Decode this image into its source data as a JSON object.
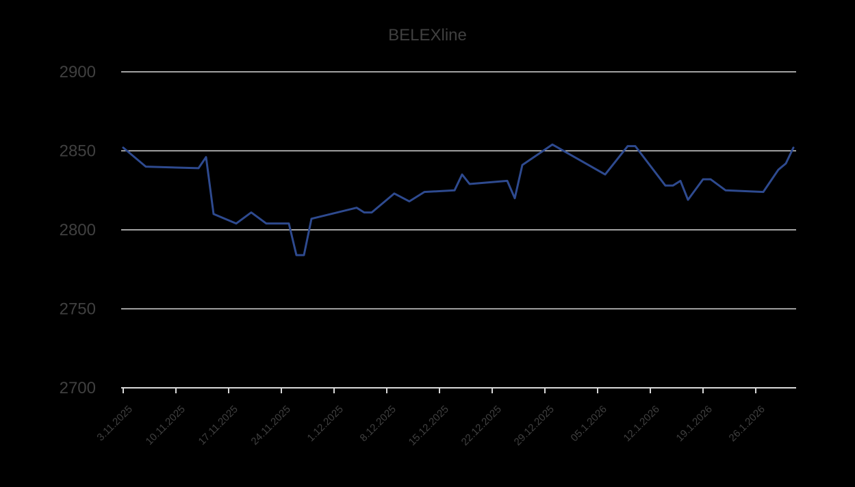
{
  "colors": {
    "background": "#000000",
    "line": "#2E4A8F",
    "grid": "#D9D9D9",
    "axis": "#D9D9D9",
    "text": "#404040"
  },
  "chart_data": {
    "type": "line",
    "title": "BELEXline",
    "xlabel": "",
    "ylabel": "",
    "ylim": [
      2700,
      2900
    ],
    "yticks": [
      2700,
      2750,
      2800,
      2850,
      2900
    ],
    "grid": true,
    "legend": "none",
    "x_tick_labels": [
      "3.11.2025",
      "10.11.2025",
      "17.11.2025",
      "24.11.2025",
      "1.12.2025",
      "8.12.2025",
      "15.12.2025",
      "22.12.2025",
      "29.12.2025",
      "05.1.2026",
      "12.1.2026",
      "19.1.2026",
      "26.1.2026"
    ],
    "x_range": [
      "2025-11-03",
      "2026-01-31"
    ],
    "series": [
      {
        "x": [
          "2025-11-03",
          "2025-11-06",
          "2025-11-13",
          "2025-11-14",
          "2025-11-15",
          "2025-11-18",
          "2025-11-20",
          "2025-11-22",
          "2025-11-25",
          "2025-11-26",
          "2025-11-27",
          "2025-11-28",
          "2025-12-04",
          "2025-12-05",
          "2025-12-06",
          "2025-12-09",
          "2025-12-11",
          "2025-12-13",
          "2025-12-17",
          "2025-12-18",
          "2025-12-19",
          "2025-12-24",
          "2025-12-25",
          "2025-12-26",
          "2025-12-30",
          "2026-01-06",
          "2026-01-09",
          "2026-01-10",
          "2026-01-14",
          "2026-01-15",
          "2026-01-16",
          "2026-01-17",
          "2026-01-19",
          "2026-01-20",
          "2026-01-22",
          "2026-01-27",
          "2026-01-29",
          "2026-01-30",
          "2026-01-31"
        ],
        "values": [
          2852,
          2840,
          2839,
          2846,
          2810,
          2804,
          2811,
          2804,
          2804,
          2784,
          2784,
          2807,
          2814,
          2811,
          2811,
          2823,
          2818,
          2824,
          2825,
          2835,
          2829,
          2831,
          2820,
          2841,
          2854,
          2835,
          2853,
          2853,
          2828,
          2828,
          2831,
          2819,
          2832,
          2832,
          2825,
          2824,
          2838,
          2842,
          2852
        ]
      }
    ]
  }
}
